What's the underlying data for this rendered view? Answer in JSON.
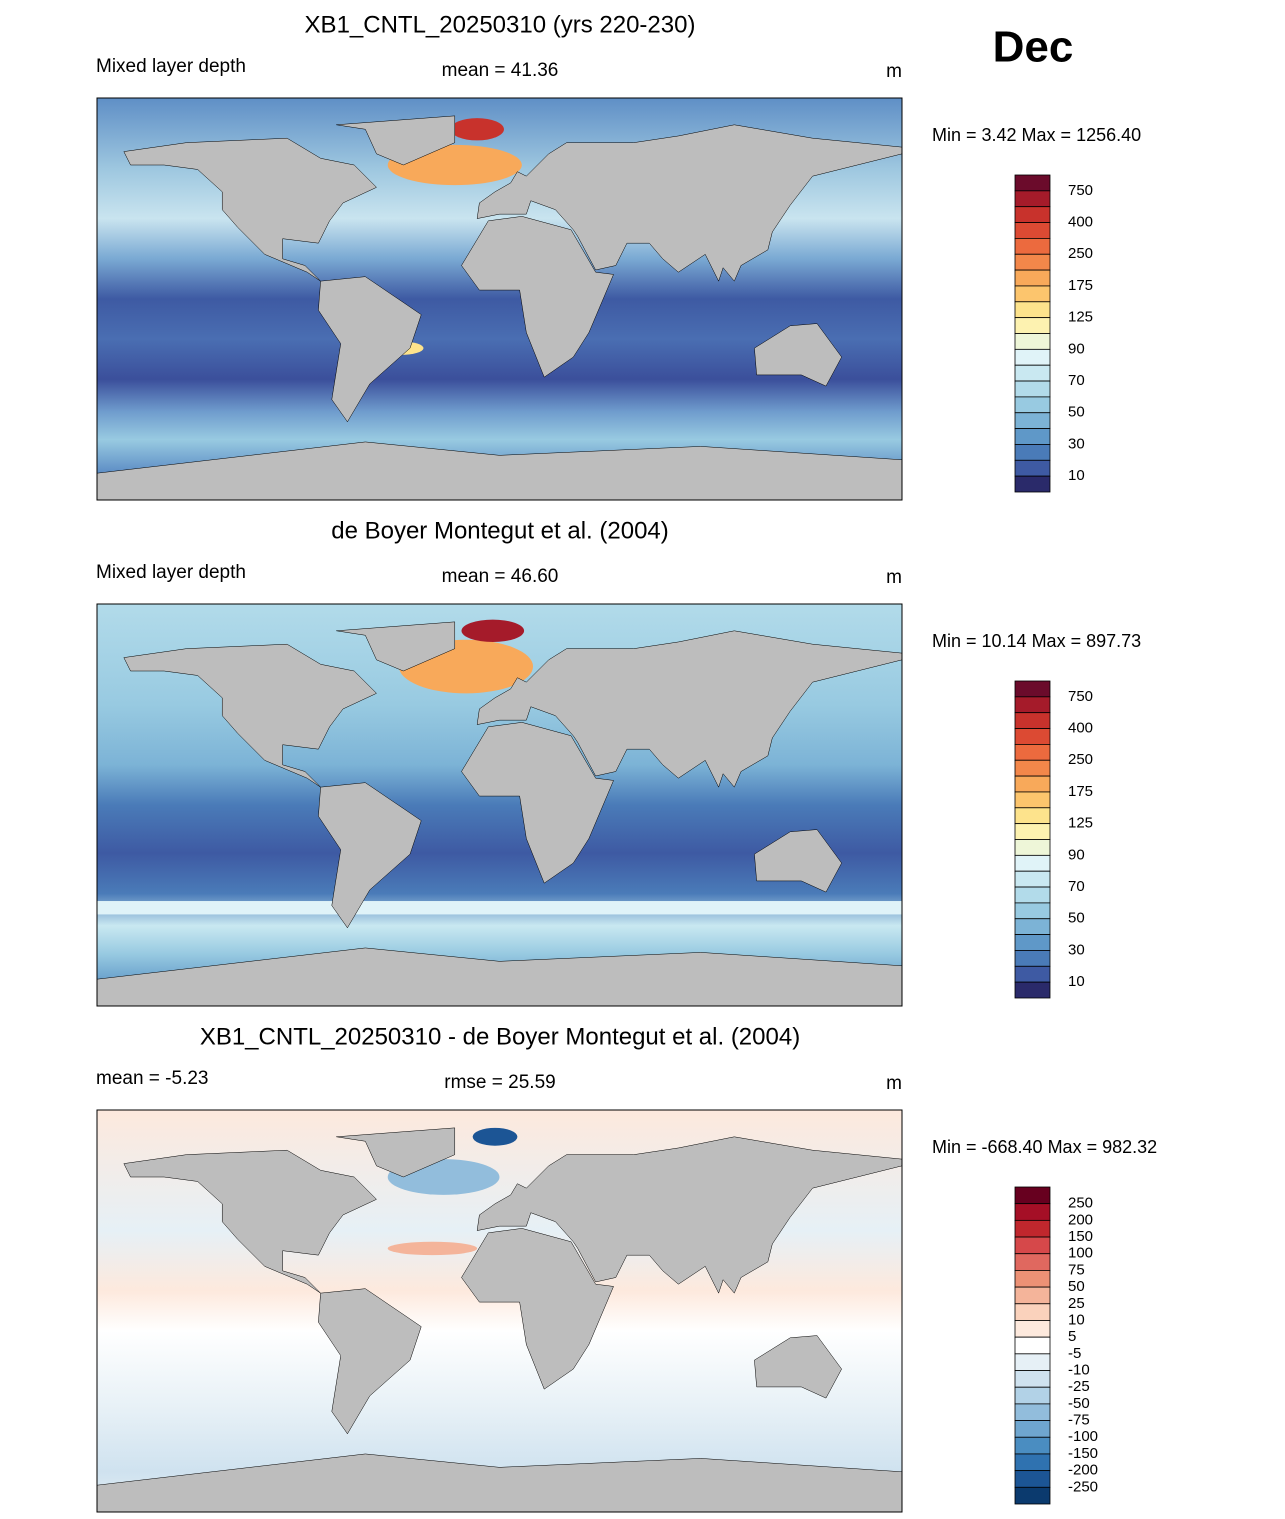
{
  "month": "Dec",
  "panels": [
    {
      "title": "XB1_CNTL_20250310 (yrs 220-230)",
      "left": "Mixed layer depth",
      "center": "mean =  41.36",
      "right": "m",
      "minmax": "Min =   3.42 Max = 1256.40",
      "colorbar": {
        "labels": [
          750,
          400,
          250,
          175,
          125,
          90,
          70,
          50,
          30,
          10
        ],
        "colors": [
          "#6b0b2b",
          "#a51b2a",
          "#c8322c",
          "#dc4a33",
          "#ec6a3e",
          "#f3874a",
          "#f8a95a",
          "#fcc56d",
          "#fde38c",
          "#fdf2b0",
          "#eef6d8",
          "#e0f3f8",
          "#c9e8f1",
          "#b2dbea",
          "#98cae1",
          "#7cb3d6",
          "#5f98c8",
          "#4a7bb8",
          "#3e5aa3",
          "#2a2a6a"
        ]
      }
    },
    {
      "title": "de Boyer Montegut et al. (2004)",
      "left": "Mixed layer depth",
      "center": "mean =  46.60",
      "right": "m",
      "minmax": "Min =  10.14 Max = 897.73",
      "colorbar": {
        "labels": [
          750,
          400,
          250,
          175,
          125,
          90,
          70,
          50,
          30,
          10
        ],
        "colors": [
          "#6b0b2b",
          "#a51b2a",
          "#c8322c",
          "#dc4a33",
          "#ec6a3e",
          "#f3874a",
          "#f8a95a",
          "#fcc56d",
          "#fde38c",
          "#fdf2b0",
          "#eef6d8",
          "#e0f3f8",
          "#c9e8f1",
          "#b2dbea",
          "#98cae1",
          "#7cb3d6",
          "#5f98c8",
          "#4a7bb8",
          "#3e5aa3",
          "#2a2a6a"
        ]
      }
    },
    {
      "title": "XB1_CNTL_20250310 - de Boyer Montegut et al. (2004)",
      "left": "mean =  -5.23",
      "center": "rmse =  25.59",
      "right": "m",
      "minmax": "Min = -668.40 Max = 982.32",
      "colorbar": {
        "labels": [
          250,
          200,
          150,
          100,
          75,
          50,
          25,
          10,
          5,
          -5,
          -10,
          -25,
          -50,
          -75,
          -100,
          -150,
          -200,
          -250
        ],
        "colors": [
          "#67001f",
          "#a50f26",
          "#c0272d",
          "#d6484a",
          "#e0685f",
          "#ec9175",
          "#f4b49a",
          "#fad2bc",
          "#fde9dd",
          "#ffffff",
          "#e6f0f6",
          "#cfe2ef",
          "#b2d2e7",
          "#92bddc",
          "#6fa6cf",
          "#4a8dc1",
          "#2f72b0",
          "#1c5595",
          "#0b3a6e"
        ]
      }
    }
  ]
}
